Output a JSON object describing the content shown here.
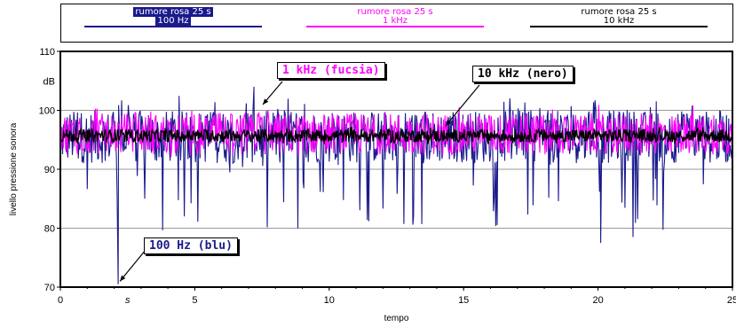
{
  "chart_data": {
    "type": "line",
    "xlabel": "tempo",
    "ylabel": "livello pressione sonora",
    "y_unit": "dB",
    "x_unit": "s",
    "xlim": [
      0,
      25
    ],
    "ylim": [
      70,
      110
    ],
    "x_ticks": [
      0,
      5,
      10,
      15,
      20,
      25
    ],
    "y_ticks": [
      70,
      80,
      90,
      100,
      110
    ],
    "grid": "horizontal",
    "legend": [
      {
        "title": "rumore rosa 25 s",
        "name": "100 Hz",
        "color": "#1a1a8c"
      },
      {
        "title": "rumore rosa 25 s",
        "name": "1 kHz",
        "color": "#ff00ff"
      },
      {
        "title": "rumore rosa 25 s",
        "name": "10 kHz",
        "color": "#000000"
      }
    ],
    "series": [
      {
        "name": "100 Hz",
        "color": "#1a1a8c",
        "mean": 95.5,
        "min": 70.5,
        "max": 104,
        "notable_points": [
          {
            "x": 2.15,
            "y": 70.5
          },
          {
            "x": 20.1,
            "y": 77.5
          },
          {
            "x": 21.3,
            "y": 78.5
          },
          {
            "x": 7.2,
            "y": 104
          }
        ]
      },
      {
        "name": "1 kHz",
        "color": "#ff00ff",
        "mean": 96,
        "min": 91,
        "max": 102
      },
      {
        "name": "10 kHz",
        "color": "#000000",
        "mean": 95.7,
        "min": 93.5,
        "max": 97.5
      }
    ],
    "annotations": [
      {
        "text": "1 kHz (fucsia)",
        "color": "#ff00ff"
      },
      {
        "text": "10 kHz (nero)",
        "color": "#000000"
      },
      {
        "text": "100 Hz (blu)",
        "color": "#1a1a8c"
      }
    ]
  }
}
